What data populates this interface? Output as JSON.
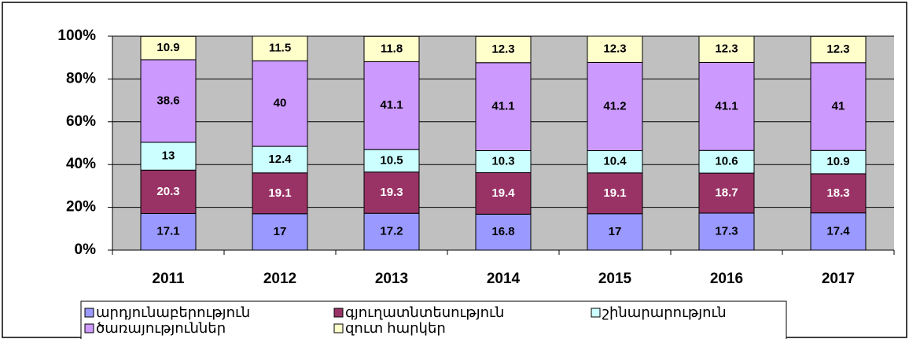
{
  "chart_data": {
    "type": "stacked_bar",
    "categories": [
      "2011",
      "2012",
      "2013",
      "2014",
      "2015",
      "2016",
      "2017"
    ],
    "series": [
      {
        "name": "արդյունաբերություն",
        "color": "#9999ff",
        "values": [
          17.1,
          17,
          17.2,
          16.8,
          17,
          17.3,
          17.4
        ]
      },
      {
        "name": "գյուղատնտեսություն",
        "color": "#993366",
        "values": [
          20.3,
          19.1,
          19.3,
          19.4,
          19.1,
          18.7,
          18.3
        ]
      },
      {
        "name": "շինարարություն",
        "color": "#ccffff",
        "values": [
          13,
          12.4,
          10.5,
          10.3,
          10.4,
          10.6,
          10.9
        ]
      },
      {
        "name": "ծառայություններ",
        "color": "#cc99ff",
        "values": [
          38.6,
          40,
          41.1,
          41.1,
          41.2,
          41.1,
          41
        ]
      },
      {
        "name": "զուտ հարկեր",
        "color": "#ffffcc",
        "values": [
          10.9,
          11.5,
          11.8,
          12.3,
          12.3,
          12.3,
          12.3
        ]
      }
    ],
    "ylim": [
      0,
      100
    ],
    "yticks": [
      {
        "value": 0,
        "label": "0%"
      },
      {
        "value": 20,
        "label": "20%"
      },
      {
        "value": 40,
        "label": "40%"
      },
      {
        "value": 60,
        "label": "60%"
      },
      {
        "value": 80,
        "label": "80%"
      },
      {
        "value": 100,
        "label": "100%"
      }
    ],
    "grid": true,
    "legend": "bottom"
  }
}
